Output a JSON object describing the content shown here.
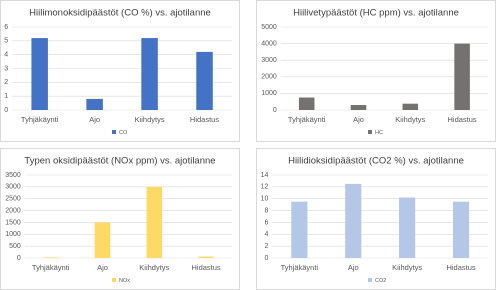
{
  "chart_data": [
    {
      "type": "bar",
      "title": "Hiilimonoksidipäästöt (CO %) vs. ajotilanne",
      "categories": [
        "Tyhjäkäynti",
        "Ajo",
        "Kiihdytys",
        "Hidastus"
      ],
      "series": [
        {
          "name": "CO",
          "color": "#4472c4",
          "values": [
            5.2,
            0.8,
            5.2,
            4.2
          ]
        }
      ],
      "ylim": [
        0,
        6
      ],
      "yticks": [
        0,
        1,
        2,
        3,
        4,
        5,
        6
      ],
      "grid": true
    },
    {
      "type": "bar",
      "title": "Hiilivetypäästöt (HC ppm) vs. ajotilanne",
      "categories": [
        "Tyhjäkäynti",
        "Ajo",
        "Kiihdytys",
        "Hidastus"
      ],
      "series": [
        {
          "name": "HC",
          "color": "#767171",
          "values": [
            750,
            300,
            380,
            4000
          ]
        }
      ],
      "ylim": [
        0,
        5000
      ],
      "yticks": [
        0,
        1000,
        2000,
        3000,
        4000,
        5000
      ],
      "grid": true
    },
    {
      "type": "bar",
      "title": "Typen oksidipäästöt (NOx ppm) vs. ajotilanne",
      "categories": [
        "Tyhjäkäynti",
        "Ajo",
        "Kiihdytys",
        "Hidastus"
      ],
      "series": [
        {
          "name": "NOx",
          "color": "#ffd966",
          "values": [
            30,
            1500,
            3000,
            60
          ]
        }
      ],
      "ylim": [
        0,
        3500
      ],
      "yticks": [
        0,
        500,
        1000,
        1500,
        2000,
        2500,
        3000,
        3500
      ],
      "grid": true
    },
    {
      "type": "bar",
      "title": "Hiilidioksidipäästöt (CO2 %) vs. ajotilanne",
      "categories": [
        "Tyhjäkäynti",
        "Ajo",
        "Kiihdytys",
        "Hidastus"
      ],
      "series": [
        {
          "name": "CO2",
          "color": "#b4c7e7",
          "values": [
            9.5,
            12.5,
            10.2,
            9.5
          ]
        }
      ],
      "ylim": [
        0,
        14
      ],
      "yticks": [
        0,
        2,
        4,
        6,
        8,
        10,
        12,
        14
      ],
      "grid": true
    }
  ]
}
